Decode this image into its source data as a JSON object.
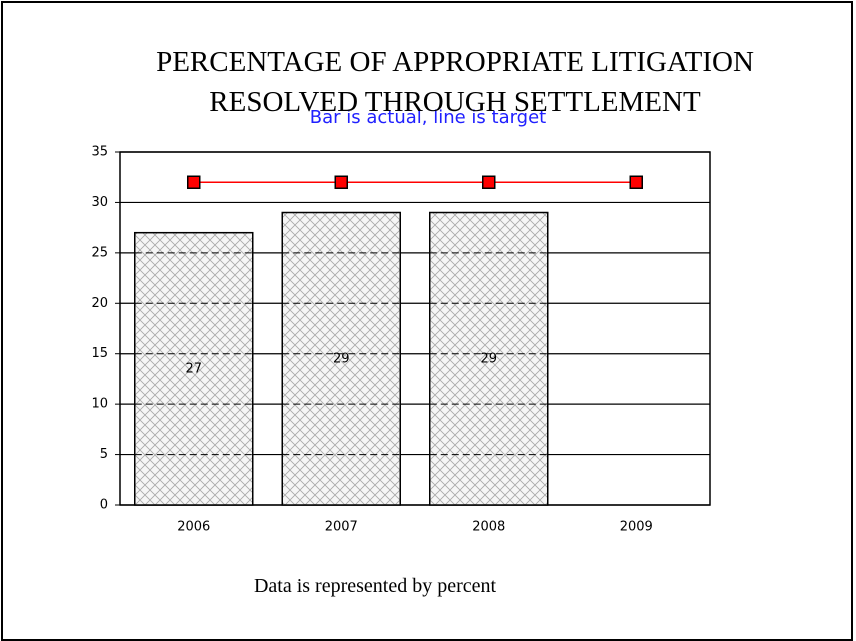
{
  "chart_data": {
    "type": "bar",
    "title": "PERCENTAGE OF APPROPRIATE LITIGATION RESOLVED THROUGH SETTLEMENT",
    "subtitle": "Bar is actual, line is target",
    "note": "Data is represented by percent",
    "categories": [
      "2006",
      "2007",
      "2008",
      "2009"
    ],
    "series": [
      {
        "type": "bar",
        "color": "#c8c8c8",
        "values": [
          27,
          29,
          29,
          null
        ]
      },
      {
        "type": "line",
        "color": "#ff0000",
        "values": [
          32,
          32,
          32,
          32
        ]
      }
    ],
    "ylim": [
      0,
      35
    ],
    "yticks": [
      0,
      5,
      10,
      15,
      20,
      25,
      30,
      35
    ],
    "grid": true
  }
}
